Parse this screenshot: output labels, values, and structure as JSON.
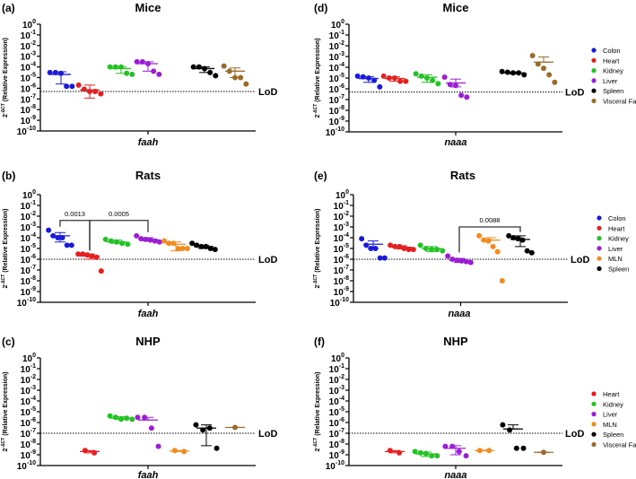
{
  "chart_data": [
    {
      "panel": "(a)",
      "title": "Mice",
      "type": "scatter",
      "xlabel": "faah",
      "ylabel": {
        "base": "2",
        "sup": "-ΔCT",
        "rest": " (Relative Expression)"
      },
      "yscale": "log",
      "ylim": [
        1e-10,
        1
      ],
      "yticks": [
        0,
        -1,
        -2,
        -3,
        -4,
        -5,
        -6,
        -7,
        -8,
        -9,
        -10
      ],
      "lod": {
        "label": "LoD",
        "value": 5e-07
      },
      "groups": [
        {
          "name": "Colon",
          "color": "#1a1adb",
          "points": [
            3e-05,
            3e-05,
            2.5e-05,
            1.5e-06,
            1.5e-06
          ],
          "mean": 2e-05,
          "err": [
            2.5e-06,
            3.5e-05
          ]
        },
        {
          "name": "Heart",
          "color": "#e61e1e",
          "points": [
            2e-06,
            8e-07,
            5e-07,
            5e-07,
            3e-07
          ],
          "mean": 7e-07,
          "err": [
            1.2e-07,
            2e-06
          ]
        },
        {
          "name": "Kidney",
          "color": "#22c322",
          "points": [
            0.0001,
            0.0001,
            0.0001,
            2.5e-05,
            2e-05
          ],
          "mean": 7e-05,
          "err": [
            2.5e-05,
            0.0001
          ]
        },
        {
          "name": "Liver",
          "color": "#9b1ed6",
          "points": [
            0.0003,
            0.0003,
            0.0002,
            4e-05,
            2e-05
          ],
          "mean": 0.0002,
          "err": [
            4e-05,
            0.0003
          ]
        },
        {
          "name": "Spleen",
          "color": "#000000",
          "points": [
            0.0001,
            0.0001,
            7e-05,
            3e-05,
            1.5e-05
          ],
          "mean": 7e-05,
          "err": [
            3e-05,
            0.0001
          ]
        },
        {
          "name": "Visceral Fat",
          "color": "#9c6b2a",
          "points": [
            0.00012,
            4e-05,
            1e-05,
            1e-05,
            2.5e-06
          ],
          "mean": 4e-05,
          "err": [
            1e-05,
            8e-05
          ]
        }
      ],
      "comparisons": [],
      "legend": []
    },
    {
      "panel": "(b)",
      "title": "Rats",
      "type": "scatter",
      "xlabel": "faah",
      "ylabel": {
        "base": "2",
        "sup": "-ΔCT",
        "rest": " (Relative Expression)"
      },
      "yscale": "log",
      "ylim": [
        1e-10,
        1
      ],
      "yticks": [
        0,
        -1,
        -2,
        -3,
        -4,
        -5,
        -6,
        -7,
        -8,
        -9,
        -10
      ],
      "lod": {
        "label": "LoD",
        "value": 1e-06
      },
      "groups": [
        {
          "name": "Colon",
          "color": "#1a1adb",
          "points": [
            0.0005,
            0.00015,
            0.0001,
            0.0001,
            2e-05,
            2e-05
          ],
          "mean": 0.00015,
          "err": [
            4e-05,
            0.0003
          ]
        },
        {
          "name": "Heart",
          "color": "#e61e1e",
          "points": [
            3e-06,
            3e-06,
            2.5e-06,
            2e-06,
            1.5e-06,
            8e-08
          ],
          "mean": 2e-06,
          "err": [
            1e-06,
            3e-06
          ]
        },
        {
          "name": "Kidney",
          "color": "#22c322",
          "points": [
            7e-05,
            5e-05,
            4e-05,
            3e-05,
            2.5e-05
          ],
          "mean": 4e-05,
          "err": [
            3e-05,
            6e-05
          ]
        },
        {
          "name": "Liver",
          "color": "#9b1ed6",
          "points": [
            0.00015,
            8e-05,
            7e-05,
            6e-05,
            5e-05,
            4e-05
          ],
          "mean": 7e-05,
          "err": [
            5e-05,
            0.0001
          ]
        },
        {
          "name": "MLN",
          "color": "#f28a1e",
          "points": [
            5e-05,
            3e-05,
            3e-05,
            1e-05,
            1e-05,
            1e-05
          ],
          "mean": 2.5e-05,
          "err": [
            6e-06,
            4e-05
          ]
        },
        {
          "name": "Spleen",
          "color": "#000000",
          "points": [
            3e-05,
            2e-05,
            1.5e-05,
            1.5e-05,
            1e-05,
            8e-06
          ],
          "mean": 1.5e-05,
          "err": [
            1e-05,
            2e-05
          ]
        }
      ],
      "comparisons": [
        {
          "from": "Colon",
          "to": "Heart",
          "p": "0.0013",
          "y": 0.004
        },
        {
          "from": "Heart",
          "to": "Liver",
          "p": "0.0005",
          "y": 0.004
        }
      ],
      "legend": []
    },
    {
      "panel": "(c)",
      "title": "NHP",
      "type": "scatter",
      "xlabel": "faah",
      "ylabel": {
        "base": "2",
        "sup": "-ΔCT",
        "rest": " (Relative Expression)"
      },
      "yscale": "log",
      "ylim": [
        1e-10,
        1
      ],
      "yticks": [
        0,
        -1,
        -2,
        -3,
        -4,
        -5,
        -6,
        -7,
        -8,
        -9,
        -10
      ],
      "lod": {
        "label": "LoD",
        "value": 1e-07
      },
      "groups": [
        {
          "name": "Heart",
          "color": "#e61e1e",
          "points": [
            2.5e-09,
            1.5e-09
          ],
          "mean": 2e-09,
          "err": [
            1.5e-09,
            2.5e-09
          ]
        },
        {
          "name": "Kidney",
          "color": "#22c322",
          "points": [
            4e-06,
            3e-06,
            2e-06,
            2.5e-06,
            2e-06
          ],
          "mean": 2.5e-06,
          "err": [
            2e-06,
            3.5e-06
          ]
        },
        {
          "name": "Liver",
          "color": "#9b1ed6",
          "points": [
            3e-06,
            3e-06,
            3e-07,
            6e-09
          ],
          "mean": 1.7e-06,
          "err": [
            1.7e-06,
            3e-06
          ]
        },
        {
          "name": "MLN",
          "color": "#f28a1e",
          "points": [
            2.5e-09,
            2e-09
          ],
          "mean": 2.2e-09,
          "err": [
            2e-09,
            2.5e-09
          ]
        },
        {
          "name": "Spleen",
          "color": "#000000",
          "points": [
            6e-07,
            2e-07,
            3e-07,
            4e-09
          ],
          "mean": 3e-07,
          "err": [
            7e-09,
            6e-07
          ]
        },
        {
          "name": "Visceral Fat",
          "color": "#9c6b2a",
          "points": [
            3.5e-07
          ],
          "mean": 3.5e-07,
          "err": [
            3.5e-07,
            3.5e-07
          ]
        }
      ],
      "comparisons": [],
      "legend": []
    },
    {
      "panel": "(d)",
      "title": "Mice",
      "type": "scatter",
      "xlabel": "naaa",
      "ylabel": {
        "base": "2",
        "sup": "-ΔCT",
        "rest": " (Relative Expression)"
      },
      "yscale": "log",
      "ylim": [
        1e-10,
        1
      ],
      "yticks": [
        0,
        -1,
        -2,
        -3,
        -4,
        -5,
        -6,
        -7,
        -8,
        -9,
        -10
      ],
      "lod": {
        "label": "LoD",
        "value": 5e-07
      },
      "groups": [
        {
          "name": "Colon",
          "color": "#1a1adb",
          "points": [
            1.5e-05,
            1.3e-05,
            1e-05,
            6e-06,
            1.5e-06
          ],
          "mean": 9e-06,
          "err": [
            4e-06,
            1.3e-05
          ]
        },
        {
          "name": "Heart",
          "color": "#e61e1e",
          "points": [
            1.5e-05,
            1e-05,
            1e-05,
            5e-06,
            5e-06
          ],
          "mean": 9e-06,
          "err": [
            5e-06,
            1.3e-05
          ]
        },
        {
          "name": "Kidney",
          "color": "#22c322",
          "points": [
            2.5e-05,
            1.5e-05,
            1e-05,
            6e-06,
            3e-06
          ],
          "mean": 1.2e-05,
          "err": [
            4e-06,
            2e-05
          ]
        },
        {
          "name": "Liver",
          "color": "#9b1ed6",
          "points": [
            1.2e-05,
            2.5e-06,
            2e-06,
            2.5e-07,
            1.7e-07
          ],
          "mean": 3.5e-06,
          "err": [
            1.5e-06,
            8e-06
          ]
        },
        {
          "name": "Spleen",
          "color": "#000000",
          "points": [
            4e-05,
            3.5e-05,
            3e-05,
            3e-05,
            2e-05
          ],
          "mean": 3e-05,
          "err": [
            2.5e-05,
            3.5e-05
          ]
        },
        {
          "name": "Visceral Fat",
          "color": "#9c6b2a",
          "points": [
            0.0012,
            0.0002,
            8e-05,
            2e-05,
            4e-06
          ],
          "mean": 0.0003,
          "err": [
            0.0003,
            0.0009
          ]
        }
      ],
      "comparisons": [],
      "legend": [
        "Colon",
        "Heart",
        "Kidney",
        "Liver",
        "Spleen",
        "Visceral Fat"
      ],
      "legend_position": "right"
    },
    {
      "panel": "(e)",
      "title": "Rats",
      "type": "scatter",
      "xlabel": "naaa",
      "ylabel": {
        "base": "2",
        "sup": "-ΔCT",
        "rest": " (Relative Expression)"
      },
      "yscale": "log",
      "ylim": [
        1e-10,
        1
      ],
      "yticks": [
        0,
        -1,
        -2,
        -3,
        -4,
        -5,
        -6,
        -7,
        -8,
        -9,
        -10
      ],
      "lod": {
        "label": "LoD",
        "value": 1e-06
      },
      "groups": [
        {
          "name": "Colon",
          "color": "#1a1adb",
          "points": [
            8e-05,
            2e-05,
            1e-05,
            1e-05,
            1.3e-06,
            1.3e-06
          ],
          "mean": 2.5e-05,
          "err": [
            1e-05,
            5e-05
          ]
        },
        {
          "name": "Heart",
          "color": "#e61e1e",
          "points": [
            2e-05,
            1.5e-05,
            1.5e-05,
            1e-05,
            8e-06,
            8e-06
          ],
          "mean": 1.3e-05,
          "err": [
            9e-06,
            1.8e-05
          ]
        },
        {
          "name": "Kidney",
          "color": "#22c322",
          "points": [
            2e-05,
            1e-05,
            8e-06,
            8e-06,
            6e-06
          ],
          "mean": 1e-05,
          "err": [
            5e-06,
            1.5e-05
          ]
        },
        {
          "name": "Liver",
          "color": "#9b1ed6",
          "points": [
            2e-06,
            1e-06,
            8e-07,
            7e-07,
            6e-07,
            5e-07
          ],
          "mean": 8e-07,
          "err": [
            5e-07,
            1.2e-06
          ]
        },
        {
          "name": "MLN",
          "color": "#f28a1e",
          "points": [
            0.00015,
            6e-05,
            5e-05,
            1.5e-05,
            5e-06,
            1e-08
          ],
          "mean": 6e-05,
          "err": [
            6e-05,
            0.0001
          ]
        },
        {
          "name": "Spleen",
          "color": "#000000",
          "points": [
            0.00015,
            0.0001,
            8e-05,
            6e-05,
            6e-06,
            4e-06
          ],
          "mean": 7e-05,
          "err": [
            1.5e-05,
            0.00015
          ]
        }
      ],
      "comparisons": [
        {
          "from": "Liver",
          "to": "Spleen",
          "p": "0.0088",
          "y": 0.001
        }
      ],
      "legend": [
        "Colon",
        "Heart",
        "Kidney",
        "Liver",
        "MLN",
        "Spleen"
      ],
      "legend_position": "right"
    },
    {
      "panel": "(f)",
      "title": "NHP",
      "type": "scatter",
      "xlabel": "naaa",
      "ylabel": {
        "base": "2",
        "sup": "-ΔCT",
        "rest": " (Relative Expression)"
      },
      "yscale": "log",
      "ylim": [
        1e-10,
        1
      ],
      "yticks": [
        0,
        -1,
        -2,
        -3,
        -4,
        -5,
        -6,
        -7,
        -8,
        -9,
        -10
      ],
      "lod": {
        "label": "LoD",
        "value": 1e-07
      },
      "groups": [
        {
          "name": "Heart",
          "color": "#e61e1e",
          "points": [
            2.5e-09,
            1.5e-09
          ],
          "mean": 2e-09,
          "err": [
            1.5e-09,
            2.5e-09
          ]
        },
        {
          "name": "Kidney",
          "color": "#22c322",
          "points": [
            2e-09,
            1.5e-09,
            1.3e-09,
            8e-10,
            8e-10
          ],
          "mean": 1.2e-09,
          "err": [
            7e-10,
            1.8e-09
          ]
        },
        {
          "name": "Liver",
          "color": "#9b1ed6",
          "points": [
            6e-09,
            6e-09,
            2e-09,
            8e-10
          ],
          "mean": 4e-09,
          "err": [
            1e-09,
            7e-09
          ]
        },
        {
          "name": "MLN",
          "color": "#f28a1e",
          "points": [
            2.5e-09,
            2.5e-09
          ],
          "mean": 2.5e-09,
          "err": [
            2.3e-09,
            2.7e-09
          ]
        },
        {
          "name": "Spleen",
          "color": "#000000",
          "points": [
            6e-07,
            2e-07,
            4e-09,
            4e-09
          ],
          "mean": 2.5e-07,
          "err": [
            2.5e-07,
            6e-07
          ]
        },
        {
          "name": "Visceral Fat",
          "color": "#9c6b2a",
          "points": [
            1.7e-09
          ],
          "mean": 1.7e-09,
          "err": [
            1.7e-09,
            1.7e-09
          ]
        }
      ],
      "comparisons": [],
      "legend": [
        "Heart",
        "Kidney",
        "Liver",
        "MLN",
        "Spleen",
        "Visceral Fat"
      ],
      "legend_position": "right"
    }
  ]
}
